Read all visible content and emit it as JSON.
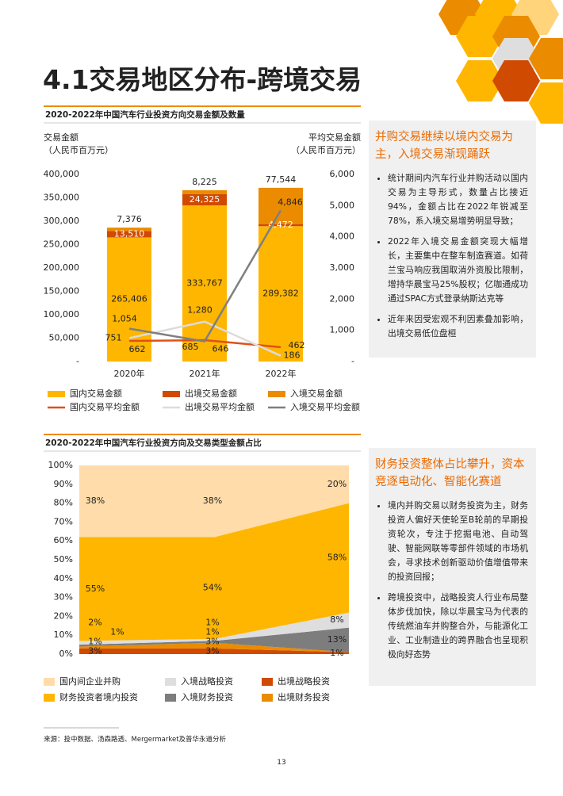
{
  "title": "4.1交易地区分布-跨境交易",
  "chart_data": [
    {
      "type": "bar-line",
      "title": "2020-2022年中国汽车行业投资方向交易金额及数量",
      "ylabel": [
        "交易金额",
        "（人民币百万元）"
      ],
      "y2label": [
        "平均交易金额",
        "（人民币百万元）"
      ],
      "categories": [
        "2020年",
        "2021年",
        "2022年"
      ],
      "ylim": [
        0,
        400000
      ],
      "yticks": [
        {
          "value": 0,
          "label": "-"
        },
        {
          "value": 50000,
          "label": "50,000"
        },
        {
          "value": 100000,
          "label": "100,000"
        },
        {
          "value": 150000,
          "label": "150,000"
        },
        {
          "value": 200000,
          "label": "200,000"
        },
        {
          "value": 250000,
          "label": "250,000"
        },
        {
          "value": 300000,
          "label": "300,000"
        },
        {
          "value": 350000,
          "label": "350,000"
        },
        {
          "value": 400000,
          "label": "400,000"
        }
      ],
      "y2lim": [
        0,
        6000
      ],
      "y2ticks": [
        {
          "value": 0,
          "label": "-"
        },
        {
          "value": 1000,
          "label": "1,000"
        },
        {
          "value": 2000,
          "label": "2,000"
        },
        {
          "value": 3000,
          "label": "3,000"
        },
        {
          "value": 4000,
          "label": "4,000"
        },
        {
          "value": 5000,
          "label": "5,000"
        },
        {
          "value": 6000,
          "label": "6,000"
        }
      ],
      "series": [
        {
          "name": "国内交易金额",
          "color": "#ffb600",
          "values": [
            265406,
            333767,
            289382
          ],
          "value_labels": [
            "265,406",
            "333,767",
            "289,382"
          ]
        },
        {
          "name": "出境交易金额",
          "color": "#d04a02",
          "values": [
            13510,
            24325,
            4472
          ],
          "value_labels": [
            "13,510",
            "24,325",
            "4,472"
          ]
        },
        {
          "name": "入境交易金额",
          "color": "#eb8c00",
          "values": [
            7376,
            8225,
            77544
          ],
          "value_labels": [
            "7,376",
            "8,225",
            "77,544"
          ]
        },
        {
          "name": "国内交易平均金额",
          "color": "#e0501a",
          "axis": "y2",
          "values": [
            662,
            685,
            462
          ]
        },
        {
          "name": "出境交易平均金额",
          "color": "#dcdcdc",
          "axis": "y2",
          "values": [
            751,
            1280,
            186
          ],
          "value_labels": [
            "751",
            "1,280",
            "186"
          ]
        },
        {
          "name": "入境交易平均金额",
          "color": "#7f7f7f",
          "axis": "y2",
          "values": [
            1054,
            646,
            4846
          ],
          "value_labels": [
            "1,054",
            "646",
            "4,846"
          ]
        }
      ]
    },
    {
      "type": "stacked-area",
      "title": "2020-2022年中国汽车行业投资方向及交易类型金额占比",
      "categories": [
        "2020年",
        "2021年",
        "2022年"
      ],
      "ylim": [
        0,
        100
      ],
      "yticks": [
        {
          "value": 0,
          "label": "0%"
        },
        {
          "value": 10,
          "label": "10%"
        },
        {
          "value": 20,
          "label": "20%"
        },
        {
          "value": 30,
          "label": "30%"
        },
        {
          "value": 40,
          "label": "40%"
        },
        {
          "value": 50,
          "label": "50%"
        },
        {
          "value": 60,
          "label": "60%"
        },
        {
          "value": 70,
          "label": "70%"
        },
        {
          "value": 80,
          "label": "80%"
        },
        {
          "value": 90,
          "label": "90%"
        },
        {
          "value": 100,
          "label": "100%"
        }
      ],
      "series": [
        {
          "name": "出境战略投资",
          "color": "#d04a02",
          "values": [
            3,
            3,
            1
          ],
          "value_labels": [
            "3%",
            "3%",
            "1%"
          ]
        },
        {
          "name": "出境财务投资",
          "color": "#eb8c00",
          "values": [
            1,
            3,
            0
          ],
          "value_labels": [
            "1%",
            "3%",
            null
          ]
        },
        {
          "name": "入境财务投资",
          "color": "#7d7d7d",
          "values": [
            1,
            1,
            13
          ],
          "value_labels": [
            "1%",
            "1%",
            "13%"
          ]
        },
        {
          "name": "入境战略投资",
          "color": "#dedede",
          "values": [
            2,
            1,
            8
          ],
          "value_labels": [
            "2%",
            "1%",
            "8%"
          ]
        },
        {
          "name": "财务投资者境内投资",
          "color": "#ffb600",
          "values": [
            55,
            54,
            58
          ],
          "value_labels": [
            "55%",
            "54%",
            "58%"
          ]
        },
        {
          "name": "国内间企业并购",
          "color": "#ffdca9",
          "values": [
            38,
            38,
            20
          ],
          "value_labels": [
            "38%",
            "38%",
            "20%"
          ]
        }
      ]
    }
  ],
  "sidebars": [
    {
      "heading": "并购交易继续以境内交易为主，入境交易渐现踊跃",
      "bullets": [
        "统计期间内汽车行业并购活动以国内交易为主导形式，数量占比接近94%，金额占比在2022年锐减至78%，系入境交易增势明显导致；",
        "2022年入境交易金额突现大幅增长，主要集中在整车制造赛道。如荷兰宝马响应我国取消外资股比限制，增持华晨宝马25%股权；亿咖通成功通过SPAC方式登录纳斯达克等",
        "近年来因受宏观不利因素叠加影响，出境交易低位盘桓"
      ]
    },
    {
      "heading": "财务投资整体占比攀升，资本竞逐电动化、智能化赛道",
      "bullets": [
        "境内并购交易以财务投资为主，财务投资人偏好天使轮至B轮前的早期投资轮次，专注于挖掘电池、自动驾驶、智能网联等零部件领域的市场机会，寻求技术创新驱动价值增值带来的投资回报；",
        "跨境投资中，战略投资人行业布局整体步伐加快，除以华晨宝马为代表的传统燃油车并购整合外，与能源化工业、工业制造业的跨界融合也呈现积极向好态势"
      ]
    }
  ],
  "source": "来源：投中数据、汤森路透、Mergermarket及普华永道分析",
  "page_number": "13"
}
